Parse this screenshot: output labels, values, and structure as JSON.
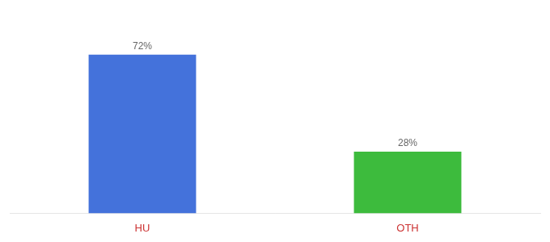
{
  "chart_data": {
    "type": "bar",
    "categories": [
      "HU",
      "OTH"
    ],
    "values": [
      72,
      28
    ],
    "value_labels": [
      "72%",
      "28%"
    ],
    "colors": [
      "#4472db",
      "#3dbb3d"
    ],
    "ylim": [
      0,
      88
    ],
    "data_labels": true,
    "tick_labels": "x",
    "grid": false
  }
}
